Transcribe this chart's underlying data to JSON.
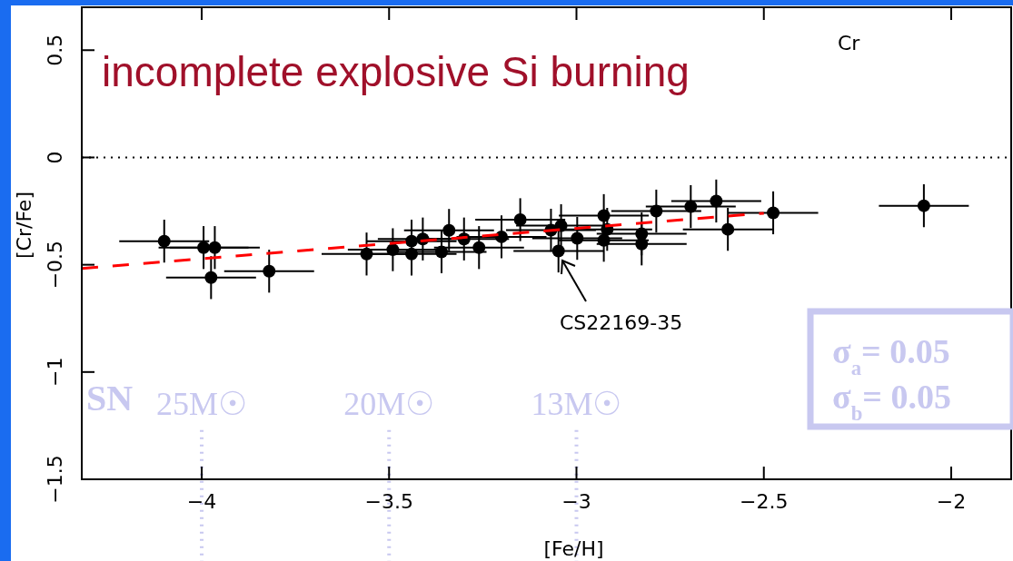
{
  "chart_data": {
    "type": "scatter",
    "title": "incomplete explosive Si burning",
    "xlabel": "[Fe/H]",
    "ylabel": "[Cr/Fe]",
    "xlim": [
      -4.32,
      -1.84
    ],
    "ylim": [
      -1.5,
      0.7
    ],
    "xticks": [
      {
        "value": -4,
        "label": "−4"
      },
      {
        "value": -3.5,
        "label": "−3.5"
      },
      {
        "value": -3,
        "label": "−3"
      },
      {
        "value": -2.5,
        "label": "−2.5"
      },
      {
        "value": -2,
        "label": "−2"
      }
    ],
    "yticks": [
      {
        "value": -1.5,
        "label": "−1.5"
      },
      {
        "value": -1,
        "label": "−1"
      },
      {
        "value": -0.5,
        "label": "−0.5"
      },
      0,
      0.5
    ],
    "series": [
      {
        "marker": "circle",
        "color": "#000000",
        "x": [
          -4.1,
          -3.995,
          -3.965,
          -3.975,
          -3.82,
          -3.56,
          -3.49,
          -3.44,
          -3.44,
          -3.41,
          -3.36,
          -3.34,
          -3.3,
          -3.26,
          -3.2,
          -3.15,
          -3.068,
          -3.041,
          -3.048,
          -2.998,
          -2.927,
          -2.918,
          -2.927,
          -2.826,
          -2.826,
          -2.787,
          -2.695,
          -2.627,
          -2.596,
          -2.475,
          -2.073
        ],
        "values": [
          -0.39,
          -0.42,
          -0.42,
          -0.56,
          -0.53,
          -0.45,
          -0.43,
          -0.45,
          -0.39,
          -0.38,
          -0.44,
          -0.34,
          -0.38,
          -0.42,
          -0.37,
          -0.29,
          -0.339,
          -0.318,
          -0.436,
          -0.377,
          -0.271,
          -0.335,
          -0.386,
          -0.356,
          -0.403,
          -0.25,
          -0.229,
          -0.203,
          -0.335,
          -0.258,
          -0.225
        ],
        "errors": [
          0.1,
          0.1,
          0.1,
          0.1,
          0.1,
          0.1,
          0.1,
          0.1,
          0.1,
          0.1,
          0.1,
          0.1,
          0.1,
          0.1,
          0.1,
          0.1,
          0.1,
          0.1,
          0.1,
          0.1,
          0.1,
          0.1,
          0.1,
          0.1,
          0.1,
          0.1,
          0.1,
          0.1,
          0.1,
          0.1,
          0.1
        ],
        "xerrors": [
          0.12,
          0.12,
          0.12,
          0.12,
          0.12,
          0.12,
          0.12,
          0.12,
          0.12,
          0.12,
          0.12,
          0.12,
          0.12,
          0.12,
          0.12,
          0.12,
          0.12,
          0.12,
          0.12,
          0.12,
          0.12,
          0.12,
          0.12,
          0.12,
          0.12,
          0.12,
          0.12,
          0.12,
          0.12,
          0.12,
          0.12
        ]
      },
      {
        "type": "line",
        "color": "#ff0000",
        "line_style": "dashed",
        "x": [
          -4.32,
          -2.5
        ],
        "values": [
          -0.517,
          -0.26
        ]
      }
    ],
    "ref_lines": [
      {
        "axis": "y",
        "value": 0,
        "color": "#000000",
        "line_style": "dotted"
      },
      {
        "axis": "x",
        "value": -4,
        "label": "25M☉",
        "color": "#c8c8f0",
        "line_style": "dotted"
      },
      {
        "axis": "x",
        "value": -3.5,
        "label": "20M☉",
        "color": "#c8c8f0",
        "line_style": "dotted"
      },
      {
        "axis": "x",
        "value": -3,
        "label": "13M☉",
        "color": "#c8c8f0",
        "line_style": "dotted"
      }
    ],
    "annotations": [
      "Cr",
      "SN",
      "σ$_{a}$= 0.05",
      "σ$_{b}$= 0.05",
      "CS22169-35"
    ]
  }
}
